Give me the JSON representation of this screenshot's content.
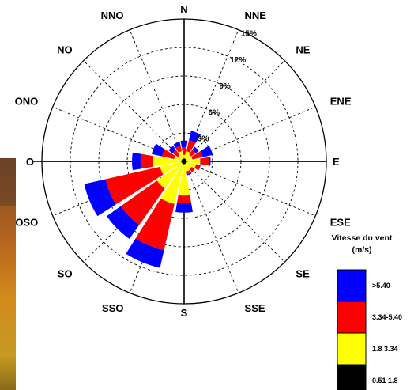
{
  "chart_data": {
    "type": "wind-rose",
    "title": "",
    "directions": [
      "N",
      "NNE",
      "NE",
      "ENE",
      "E",
      "ESE",
      "SE",
      "SSE",
      "S",
      "SSO",
      "SO",
      "OSO",
      "O",
      "ONO",
      "NO",
      "NNO"
    ],
    "radial_ticks": [
      3,
      6,
      9,
      12,
      15
    ],
    "radial_tick_labels": [
      "3%",
      "6%",
      "9%",
      "12%",
      "15%"
    ],
    "radial_max": 15,
    "legend_title_lines": [
      "Vitesse du vent",
      "(m/s)"
    ],
    "speed_bins": [
      {
        "label": ">5.40",
        "color": "#0000ff"
      },
      {
        "label": "3.34-5.40",
        "color": "#ff0000"
      },
      {
        "label": "1.8 3.34",
        "color": "#ffff00"
      },
      {
        "label": "0.51 1.8",
        "color": "#000000"
      }
    ],
    "series": [
      {
        "name": "0.51 1.8",
        "values": [
          0.3,
          0.3,
          0.3,
          0.3,
          0.3,
          0.3,
          0.3,
          0.3,
          0.3,
          0.3,
          0.3,
          0.3,
          0.3,
          0.3,
          0.3,
          0.3
        ]
      },
      {
        "name": "1.8 3.34",
        "values": [
          0.4,
          0.8,
          0.6,
          0.6,
          1.4,
          1.0,
          0.7,
          0.8,
          3.3,
          4.3,
          3.2,
          2.3,
          3.0,
          0.8,
          0.5,
          0.8
        ]
      },
      {
        "name": "3.34-5.40",
        "values": [
          0.8,
          1.2,
          0.6,
          1.1,
          0.9,
          0.5,
          0.4,
          0.3,
          0.8,
          5.0,
          4.7,
          5.9,
          1.3,
          1.3,
          0.7,
          0.6
        ]
      },
      {
        "name": ">5.40",
        "values": [
          0.7,
          1.0,
          0.4,
          1.1,
          0.2,
          0.0,
          0.0,
          0.1,
          1.0,
          1.9,
          1.8,
          2.3,
          0.9,
          1.1,
          0.5,
          0.4
        ]
      }
    ]
  }
}
